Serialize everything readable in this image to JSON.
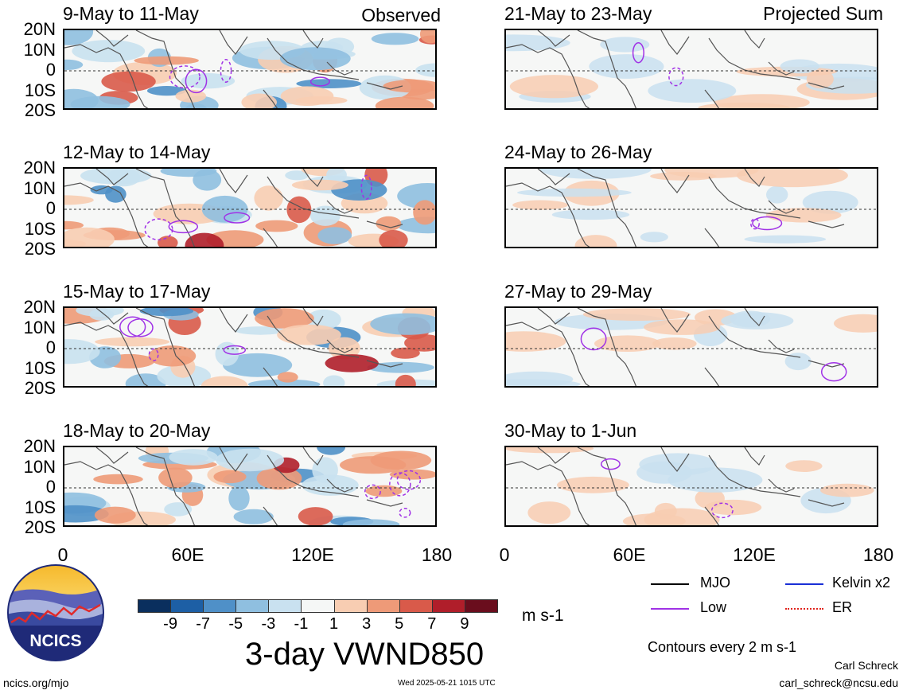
{
  "observed_label": "Observed",
  "projected_label": "Projected Sum",
  "panels_left": [
    {
      "title": "9-May to 11-May"
    },
    {
      "title": "12-May to 14-May"
    },
    {
      "title": "15-May to 17-May"
    },
    {
      "title": "18-May to 20-May"
    }
  ],
  "panels_right": [
    {
      "title": "21-May to 23-May"
    },
    {
      "title": "24-May to 26-May"
    },
    {
      "title": "27-May to 29-May"
    },
    {
      "title": "30-May to 1-Jun"
    }
  ],
  "lat_labels": [
    "20N",
    "10N",
    "0",
    "10S",
    "20S"
  ],
  "lon_labels": [
    "0",
    "60E",
    "120E",
    "180"
  ],
  "colorbar": {
    "labels": [
      "-9",
      "-7",
      "-5",
      "-3",
      "-1",
      "1",
      "3",
      "5",
      "7",
      "9"
    ],
    "colors": [
      "#0a2f5e",
      "#1d5fa5",
      "#4f90c8",
      "#8fbfe0",
      "#c9e1f0",
      "#f5f7f6",
      "#f8cdb2",
      "#ee9a78",
      "#d95a4a",
      "#b01e2a",
      "#6a0d1d"
    ],
    "units": "m s-1"
  },
  "main_title": "3-day VWND850",
  "legend": {
    "mjo": "MJO",
    "kelvin": "Kelvin x2",
    "low": "Low",
    "er": "ER",
    "mjo_color": "#000000",
    "kelvin_color": "#1a2fd6",
    "low_color": "#a032e6",
    "er_color": "#e0241c"
  },
  "contour_note": "Contours every 2 m s-1",
  "author": "Carl Schreck",
  "email": "carl_schreck@ncsu.edu",
  "website": "ncics.org/mjo",
  "timestamp": "Wed 2025-05-21 1015 UTC",
  "logo_text": "NCICS"
}
